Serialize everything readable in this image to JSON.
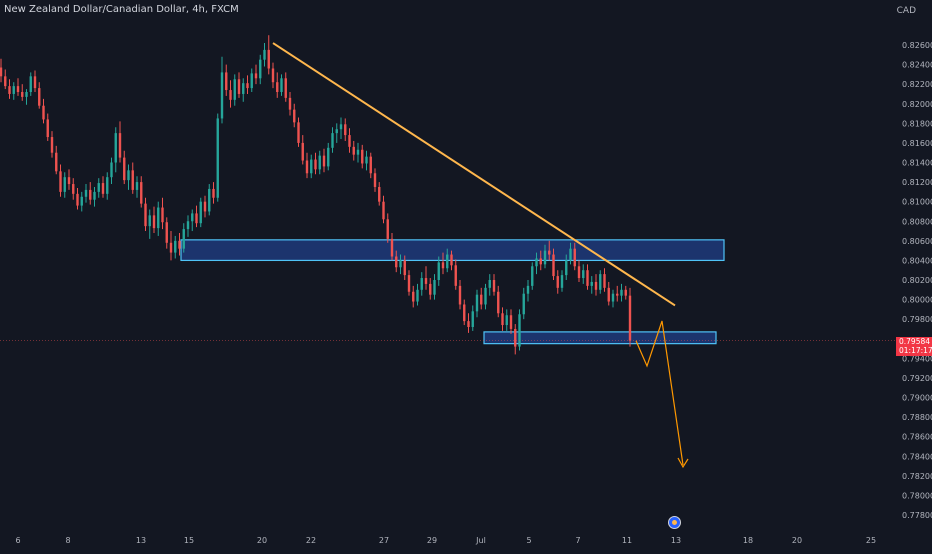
{
  "header": {
    "title": "New Zealand Dollar/Canadian Dollar, 4h, FXCM",
    "currency": "CAD"
  },
  "price_badge": {
    "price": "0.79584",
    "countdown": "01:17:17"
  },
  "colors": {
    "background": "#131722",
    "up": "#26a69a",
    "down": "#ef5350",
    "trendline": "#ffb74d",
    "zone_fill": "#1e3a7a",
    "zone_border": "#4fc3f7",
    "projection": "#ff9800",
    "axis_text": "#b2b5be"
  },
  "chart_data": {
    "type": "candlestick",
    "title": "New Zealand Dollar/Canadian Dollar, 4h, FXCM",
    "xlabel": "",
    "ylabel": "CAD",
    "ylim": [
      0.777,
      0.829
    ],
    "y_ticks": [
      "0.82600",
      "0.82400",
      "0.82200",
      "0.82000",
      "0.81800",
      "0.81600",
      "0.81400",
      "0.81200",
      "0.81000",
      "0.80800",
      "0.80600",
      "0.80400",
      "0.80200",
      "0.80000",
      "0.79800",
      "0.79400",
      "0.79200",
      "0.79000",
      "0.78800",
      "0.78600",
      "0.78400",
      "0.78200",
      "0.78000",
      "0.77800"
    ],
    "x_ticks": [
      "6",
      "8",
      "13",
      "15",
      "20",
      "22",
      "27",
      "29",
      "Jul",
      "5",
      "7",
      "11",
      "13",
      "18",
      "20",
      "25"
    ],
    "last_price": 0.79584,
    "grid": false,
    "candles": [
      {
        "o": 0.8237,
        "h": 0.8246,
        "l": 0.8222,
        "c": 0.8228
      },
      {
        "o": 0.8228,
        "h": 0.8235,
        "l": 0.8215,
        "c": 0.8218
      },
      {
        "o": 0.8218,
        "h": 0.8225,
        "l": 0.8205,
        "c": 0.821
      },
      {
        "o": 0.821,
        "h": 0.8222,
        "l": 0.8204,
        "c": 0.8218
      },
      {
        "o": 0.8218,
        "h": 0.8226,
        "l": 0.8208,
        "c": 0.8212
      },
      {
        "o": 0.8212,
        "h": 0.822,
        "l": 0.8203,
        "c": 0.8207
      },
      {
        "o": 0.8207,
        "h": 0.8215,
        "l": 0.8199,
        "c": 0.8212
      },
      {
        "o": 0.8212,
        "h": 0.8232,
        "l": 0.8208,
        "c": 0.8228
      },
      {
        "o": 0.8228,
        "h": 0.8234,
        "l": 0.8212,
        "c": 0.8216
      },
      {
        "o": 0.8216,
        "h": 0.8222,
        "l": 0.8195,
        "c": 0.8198
      },
      {
        "o": 0.8198,
        "h": 0.8205,
        "l": 0.818,
        "c": 0.8184
      },
      {
        "o": 0.8184,
        "h": 0.819,
        "l": 0.8162,
        "c": 0.8166
      },
      {
        "o": 0.8166,
        "h": 0.8172,
        "l": 0.8145,
        "c": 0.815
      },
      {
        "o": 0.815,
        "h": 0.8157,
        "l": 0.8128,
        "c": 0.8131
      },
      {
        "o": 0.8131,
        "h": 0.8138,
        "l": 0.8105,
        "c": 0.811
      },
      {
        "o": 0.811,
        "h": 0.813,
        "l": 0.8104,
        "c": 0.8125
      },
      {
        "o": 0.8125,
        "h": 0.8133,
        "l": 0.8112,
        "c": 0.8118
      },
      {
        "o": 0.8118,
        "h": 0.8124,
        "l": 0.8102,
        "c": 0.8108
      },
      {
        "o": 0.8108,
        "h": 0.8114,
        "l": 0.8092,
        "c": 0.8096
      },
      {
        "o": 0.8096,
        "h": 0.811,
        "l": 0.809,
        "c": 0.8105
      },
      {
        "o": 0.8105,
        "h": 0.8118,
        "l": 0.8099,
        "c": 0.8112
      },
      {
        "o": 0.8112,
        "h": 0.812,
        "l": 0.8097,
        "c": 0.8102
      },
      {
        "o": 0.8102,
        "h": 0.8115,
        "l": 0.8095,
        "c": 0.811
      },
      {
        "o": 0.811,
        "h": 0.8124,
        "l": 0.8104,
        "c": 0.8119
      },
      {
        "o": 0.8119,
        "h": 0.8126,
        "l": 0.8104,
        "c": 0.8108
      },
      {
        "o": 0.8108,
        "h": 0.813,
        "l": 0.8102,
        "c": 0.8125
      },
      {
        "o": 0.8125,
        "h": 0.8145,
        "l": 0.8118,
        "c": 0.814
      },
      {
        "o": 0.814,
        "h": 0.8176,
        "l": 0.813,
        "c": 0.817
      },
      {
        "o": 0.817,
        "h": 0.8182,
        "l": 0.814,
        "c": 0.8145
      },
      {
        "o": 0.8145,
        "h": 0.8152,
        "l": 0.8118,
        "c": 0.8122
      },
      {
        "o": 0.8122,
        "h": 0.8138,
        "l": 0.8112,
        "c": 0.8132
      },
      {
        "o": 0.8132,
        "h": 0.814,
        "l": 0.8108,
        "c": 0.8112
      },
      {
        "o": 0.8112,
        "h": 0.8126,
        "l": 0.8104,
        "c": 0.812
      },
      {
        "o": 0.812,
        "h": 0.8126,
        "l": 0.8094,
        "c": 0.8098
      },
      {
        "o": 0.8098,
        "h": 0.8104,
        "l": 0.807,
        "c": 0.8075
      },
      {
        "o": 0.8075,
        "h": 0.8092,
        "l": 0.8062,
        "c": 0.8086
      },
      {
        "o": 0.8086,
        "h": 0.8095,
        "l": 0.8068,
        "c": 0.8073
      },
      {
        "o": 0.8073,
        "h": 0.81,
        "l": 0.8065,
        "c": 0.8094
      },
      {
        "o": 0.8094,
        "h": 0.8104,
        "l": 0.8072,
        "c": 0.8079
      },
      {
        "o": 0.8079,
        "h": 0.8084,
        "l": 0.8052,
        "c": 0.8058
      },
      {
        "o": 0.8058,
        "h": 0.807,
        "l": 0.804,
        "c": 0.8048
      },
      {
        "o": 0.8048,
        "h": 0.8065,
        "l": 0.8042,
        "c": 0.806
      },
      {
        "o": 0.806,
        "h": 0.8068,
        "l": 0.8045,
        "c": 0.8052
      },
      {
        "o": 0.8052,
        "h": 0.8078,
        "l": 0.8048,
        "c": 0.8072
      },
      {
        "o": 0.8072,
        "h": 0.8086,
        "l": 0.8064,
        "c": 0.808
      },
      {
        "o": 0.808,
        "h": 0.8092,
        "l": 0.807,
        "c": 0.8088
      },
      {
        "o": 0.8088,
        "h": 0.8096,
        "l": 0.8074,
        "c": 0.8078
      },
      {
        "o": 0.8078,
        "h": 0.8104,
        "l": 0.8074,
        "c": 0.81
      },
      {
        "o": 0.81,
        "h": 0.8106,
        "l": 0.8084,
        "c": 0.809
      },
      {
        "o": 0.809,
        "h": 0.8118,
        "l": 0.8086,
        "c": 0.8113
      },
      {
        "o": 0.8113,
        "h": 0.812,
        "l": 0.8098,
        "c": 0.8104
      },
      {
        "o": 0.8104,
        "h": 0.819,
        "l": 0.81,
        "c": 0.8185
      },
      {
        "o": 0.8185,
        "h": 0.8248,
        "l": 0.818,
        "c": 0.8232
      },
      {
        "o": 0.8232,
        "h": 0.824,
        "l": 0.8208,
        "c": 0.8214
      },
      {
        "o": 0.8214,
        "h": 0.8224,
        "l": 0.8196,
        "c": 0.8204
      },
      {
        "o": 0.8204,
        "h": 0.823,
        "l": 0.8198,
        "c": 0.8225
      },
      {
        "o": 0.8225,
        "h": 0.8232,
        "l": 0.8206,
        "c": 0.821
      },
      {
        "o": 0.821,
        "h": 0.8226,
        "l": 0.8202,
        "c": 0.8221
      },
      {
        "o": 0.8221,
        "h": 0.8229,
        "l": 0.821,
        "c": 0.8216
      },
      {
        "o": 0.8216,
        "h": 0.8236,
        "l": 0.8212,
        "c": 0.8231
      },
      {
        "o": 0.8231,
        "h": 0.824,
        "l": 0.822,
        "c": 0.8226
      },
      {
        "o": 0.8226,
        "h": 0.825,
        "l": 0.822,
        "c": 0.8245
      },
      {
        "o": 0.8245,
        "h": 0.8262,
        "l": 0.8238,
        "c": 0.8255
      },
      {
        "o": 0.8255,
        "h": 0.827,
        "l": 0.823,
        "c": 0.8236
      },
      {
        "o": 0.8236,
        "h": 0.8242,
        "l": 0.8216,
        "c": 0.8222
      },
      {
        "o": 0.8222,
        "h": 0.8232,
        "l": 0.8206,
        "c": 0.8212
      },
      {
        "o": 0.8212,
        "h": 0.823,
        "l": 0.8208,
        "c": 0.8226
      },
      {
        "o": 0.8226,
        "h": 0.8232,
        "l": 0.8202,
        "c": 0.8206
      },
      {
        "o": 0.8206,
        "h": 0.8212,
        "l": 0.8188,
        "c": 0.8194
      },
      {
        "o": 0.8194,
        "h": 0.82,
        "l": 0.8176,
        "c": 0.8181
      },
      {
        "o": 0.8181,
        "h": 0.8186,
        "l": 0.8156,
        "c": 0.816
      },
      {
        "o": 0.816,
        "h": 0.8168,
        "l": 0.8138,
        "c": 0.8142
      },
      {
        "o": 0.8142,
        "h": 0.815,
        "l": 0.8124,
        "c": 0.8129
      },
      {
        "o": 0.8129,
        "h": 0.8148,
        "l": 0.8124,
        "c": 0.8143
      },
      {
        "o": 0.8143,
        "h": 0.815,
        "l": 0.8128,
        "c": 0.8133
      },
      {
        "o": 0.8133,
        "h": 0.8152,
        "l": 0.8128,
        "c": 0.8147
      },
      {
        "o": 0.8147,
        "h": 0.8154,
        "l": 0.813,
        "c": 0.8136
      },
      {
        "o": 0.8136,
        "h": 0.816,
        "l": 0.8132,
        "c": 0.8155
      },
      {
        "o": 0.8155,
        "h": 0.8176,
        "l": 0.815,
        "c": 0.817
      },
      {
        "o": 0.817,
        "h": 0.818,
        "l": 0.816,
        "c": 0.8174
      },
      {
        "o": 0.8174,
        "h": 0.8186,
        "l": 0.8164,
        "c": 0.8179
      },
      {
        "o": 0.8179,
        "h": 0.8185,
        "l": 0.8162,
        "c": 0.8168
      },
      {
        "o": 0.8168,
        "h": 0.8175,
        "l": 0.815,
        "c": 0.8156
      },
      {
        "o": 0.8156,
        "h": 0.8162,
        "l": 0.8142,
        "c": 0.8148
      },
      {
        "o": 0.8148,
        "h": 0.816,
        "l": 0.814,
        "c": 0.8153
      },
      {
        "o": 0.8153,
        "h": 0.8158,
        "l": 0.8134,
        "c": 0.8139
      },
      {
        "o": 0.8139,
        "h": 0.8152,
        "l": 0.8132,
        "c": 0.8146
      },
      {
        "o": 0.8146,
        "h": 0.815,
        "l": 0.8124,
        "c": 0.8129
      },
      {
        "o": 0.8129,
        "h": 0.8134,
        "l": 0.811,
        "c": 0.8115
      },
      {
        "o": 0.8115,
        "h": 0.812,
        "l": 0.8096,
        "c": 0.81
      },
      {
        "o": 0.81,
        "h": 0.8106,
        "l": 0.8078,
        "c": 0.8082
      },
      {
        "o": 0.8082,
        "h": 0.8088,
        "l": 0.8058,
        "c": 0.8062
      },
      {
        "o": 0.8062,
        "h": 0.8068,
        "l": 0.804,
        "c": 0.8044
      },
      {
        "o": 0.8044,
        "h": 0.805,
        "l": 0.8028,
        "c": 0.8033
      },
      {
        "o": 0.8033,
        "h": 0.8046,
        "l": 0.8026,
        "c": 0.804
      },
      {
        "o": 0.804,
        "h": 0.8045,
        "l": 0.802,
        "c": 0.8025
      },
      {
        "o": 0.8025,
        "h": 0.803,
        "l": 0.8004,
        "c": 0.8008
      },
      {
        "o": 0.8008,
        "h": 0.8014,
        "l": 0.7992,
        "c": 0.7998
      },
      {
        "o": 0.7998,
        "h": 0.8016,
        "l": 0.7994,
        "c": 0.801
      },
      {
        "o": 0.801,
        "h": 0.8028,
        "l": 0.8004,
        "c": 0.8022
      },
      {
        "o": 0.8022,
        "h": 0.8034,
        "l": 0.801,
        "c": 0.8016
      },
      {
        "o": 0.8016,
        "h": 0.8022,
        "l": 0.8,
        "c": 0.8005
      },
      {
        "o": 0.8005,
        "h": 0.8026,
        "l": 0.8,
        "c": 0.802
      },
      {
        "o": 0.802,
        "h": 0.8044,
        "l": 0.8014,
        "c": 0.8038
      },
      {
        "o": 0.8038,
        "h": 0.8048,
        "l": 0.8026,
        "c": 0.8032
      },
      {
        "o": 0.8032,
        "h": 0.8052,
        "l": 0.8028,
        "c": 0.8046
      },
      {
        "o": 0.8046,
        "h": 0.805,
        "l": 0.803,
        "c": 0.8035
      },
      {
        "o": 0.8035,
        "h": 0.8041,
        "l": 0.801,
        "c": 0.8014
      },
      {
        "o": 0.8014,
        "h": 0.802,
        "l": 0.799,
        "c": 0.7995
      },
      {
        "o": 0.7995,
        "h": 0.8,
        "l": 0.7974,
        "c": 0.7978
      },
      {
        "o": 0.7978,
        "h": 0.7986,
        "l": 0.7966,
        "c": 0.7972
      },
      {
        "o": 0.7972,
        "h": 0.7994,
        "l": 0.7968,
        "c": 0.7988
      },
      {
        "o": 0.7988,
        "h": 0.801,
        "l": 0.7982,
        "c": 0.8005
      },
      {
        "o": 0.8005,
        "h": 0.8012,
        "l": 0.799,
        "c": 0.7995
      },
      {
        "o": 0.7995,
        "h": 0.8016,
        "l": 0.799,
        "c": 0.8012
      },
      {
        "o": 0.8012,
        "h": 0.8026,
        "l": 0.8004,
        "c": 0.802
      },
      {
        "o": 0.802,
        "h": 0.8026,
        "l": 0.8004,
        "c": 0.8008
      },
      {
        "o": 0.8008,
        "h": 0.8014,
        "l": 0.7982,
        "c": 0.7986
      },
      {
        "o": 0.7986,
        "h": 0.7992,
        "l": 0.7968,
        "c": 0.7974
      },
      {
        "o": 0.7974,
        "h": 0.799,
        "l": 0.7968,
        "c": 0.7984
      },
      {
        "o": 0.7984,
        "h": 0.799,
        "l": 0.7965,
        "c": 0.797
      },
      {
        "o": 0.797,
        "h": 0.7975,
        "l": 0.7944,
        "c": 0.7952
      },
      {
        "o": 0.7952,
        "h": 0.799,
        "l": 0.7948,
        "c": 0.7985
      },
      {
        "o": 0.7985,
        "h": 0.8012,
        "l": 0.798,
        "c": 0.8006
      },
      {
        "o": 0.8006,
        "h": 0.802,
        "l": 0.7998,
        "c": 0.8014
      },
      {
        "o": 0.8014,
        "h": 0.8038,
        "l": 0.801,
        "c": 0.8034
      },
      {
        "o": 0.8034,
        "h": 0.8048,
        "l": 0.8026,
        "c": 0.8042
      },
      {
        "o": 0.8042,
        "h": 0.805,
        "l": 0.803,
        "c": 0.8036
      },
      {
        "o": 0.8036,
        "h": 0.8056,
        "l": 0.8032,
        "c": 0.805
      },
      {
        "o": 0.805,
        "h": 0.806,
        "l": 0.804,
        "c": 0.8046
      },
      {
        "o": 0.8046,
        "h": 0.8052,
        "l": 0.802,
        "c": 0.8024
      },
      {
        "o": 0.8024,
        "h": 0.803,
        "l": 0.8006,
        "c": 0.8012
      },
      {
        "o": 0.8012,
        "h": 0.803,
        "l": 0.8008,
        "c": 0.8025
      },
      {
        "o": 0.8025,
        "h": 0.8046,
        "l": 0.802,
        "c": 0.804
      },
      {
        "o": 0.804,
        "h": 0.8058,
        "l": 0.8036,
        "c": 0.8052
      },
      {
        "o": 0.8052,
        "h": 0.8058,
        "l": 0.803,
        "c": 0.8034
      },
      {
        "o": 0.8034,
        "h": 0.804,
        "l": 0.8018,
        "c": 0.8022
      },
      {
        "o": 0.8022,
        "h": 0.8036,
        "l": 0.8016,
        "c": 0.803
      },
      {
        "o": 0.803,
        "h": 0.8036,
        "l": 0.801,
        "c": 0.8014
      },
      {
        "o": 0.8014,
        "h": 0.8024,
        "l": 0.8006,
        "c": 0.8018
      },
      {
        "o": 0.8018,
        "h": 0.8026,
        "l": 0.8004,
        "c": 0.801
      },
      {
        "o": 0.801,
        "h": 0.803,
        "l": 0.8006,
        "c": 0.8026
      },
      {
        "o": 0.8026,
        "h": 0.8032,
        "l": 0.8008,
        "c": 0.8012
      },
      {
        "o": 0.8012,
        "h": 0.8018,
        "l": 0.7994,
        "c": 0.7998
      },
      {
        "o": 0.7998,
        "h": 0.801,
        "l": 0.7992,
        "c": 0.8006
      },
      {
        "o": 0.8006,
        "h": 0.8014,
        "l": 0.7998,
        "c": 0.8004
      },
      {
        "o": 0.8004,
        "h": 0.8016,
        "l": 0.7998,
        "c": 0.801
      },
      {
        "o": 0.801,
        "h": 0.8014,
        "l": 0.8,
        "c": 0.8004
      },
      {
        "o": 0.8004,
        "h": 0.8012,
        "l": 0.7952,
        "c": 0.7958
      }
    ],
    "annotations": {
      "trendline": {
        "from": [
          64,
          0.8262
        ],
        "to": [
          167,
          0.7994
        ]
      },
      "resistance_zone": {
        "x_from": 43,
        "x_to": 178,
        "y_low": 0.804,
        "y_high": 0.8061
      },
      "support_zone": {
        "x_from": 120,
        "x_to": 178,
        "y_low": 0.7955,
        "y_high": 0.7967
      },
      "projection_path": [
        [
          157,
          0.7958
        ],
        [
          161,
          0.7937
        ],
        [
          165,
          0.7978
        ],
        [
          170,
          0.7832
        ]
      ]
    }
  }
}
